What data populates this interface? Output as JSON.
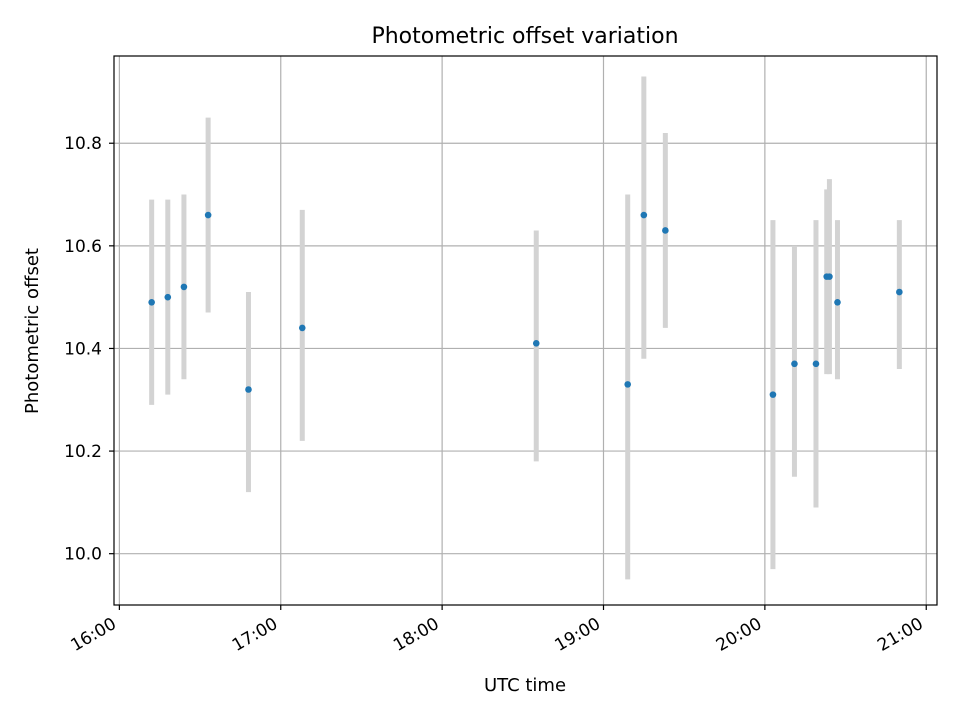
{
  "chart_data": {
    "type": "scatter",
    "title": "Photometric offset variation",
    "xlabel": "UTC time",
    "ylabel": "Photometric offset",
    "xlim": [
      "15:58",
      "21:04"
    ],
    "ylim": [
      9.9,
      10.97
    ],
    "x_ticks": [
      "16:00",
      "17:00",
      "18:00",
      "19:00",
      "20:00",
      "21:00"
    ],
    "y_ticks": [
      10.0,
      10.2,
      10.4,
      10.6,
      10.8
    ],
    "grid": true,
    "error_bar_color": "#d3d3d3",
    "point_color": "#1f77b4",
    "points": [
      {
        "x": "16:12",
        "y": 10.49,
        "ylow": 10.29,
        "yhigh": 10.69
      },
      {
        "x": "16:18",
        "y": 10.5,
        "ylow": 10.31,
        "yhigh": 10.69
      },
      {
        "x": "16:24",
        "y": 10.52,
        "ylow": 10.34,
        "yhigh": 10.7
      },
      {
        "x": "16:33",
        "y": 10.66,
        "ylow": 10.47,
        "yhigh": 10.85
      },
      {
        "x": "16:48",
        "y": 10.32,
        "ylow": 10.12,
        "yhigh": 10.51
      },
      {
        "x": "17:08",
        "y": 10.44,
        "ylow": 10.22,
        "yhigh": 10.67
      },
      {
        "x": "18:35",
        "y": 10.41,
        "ylow": 10.18,
        "yhigh": 10.63
      },
      {
        "x": "19:09",
        "y": 10.33,
        "ylow": 9.95,
        "yhigh": 10.7
      },
      {
        "x": "19:15",
        "y": 10.66,
        "ylow": 10.38,
        "yhigh": 10.93
      },
      {
        "x": "19:23",
        "y": 10.63,
        "ylow": 10.44,
        "yhigh": 10.82
      },
      {
        "x": "20:03",
        "y": 10.31,
        "ylow": 9.97,
        "yhigh": 10.65
      },
      {
        "x": "20:11",
        "y": 10.37,
        "ylow": 10.15,
        "yhigh": 10.6
      },
      {
        "x": "20:19",
        "y": 10.37,
        "ylow": 10.09,
        "yhigh": 10.65
      },
      {
        "x": "20:23",
        "y": 10.54,
        "ylow": 10.35,
        "yhigh": 10.71
      },
      {
        "x": "20:24",
        "y": 10.54,
        "ylow": 10.35,
        "yhigh": 10.73
      },
      {
        "x": "20:27",
        "y": 10.49,
        "ylow": 10.34,
        "yhigh": 10.65
      },
      {
        "x": "20:50",
        "y": 10.51,
        "ylow": 10.36,
        "yhigh": 10.65
      }
    ]
  }
}
